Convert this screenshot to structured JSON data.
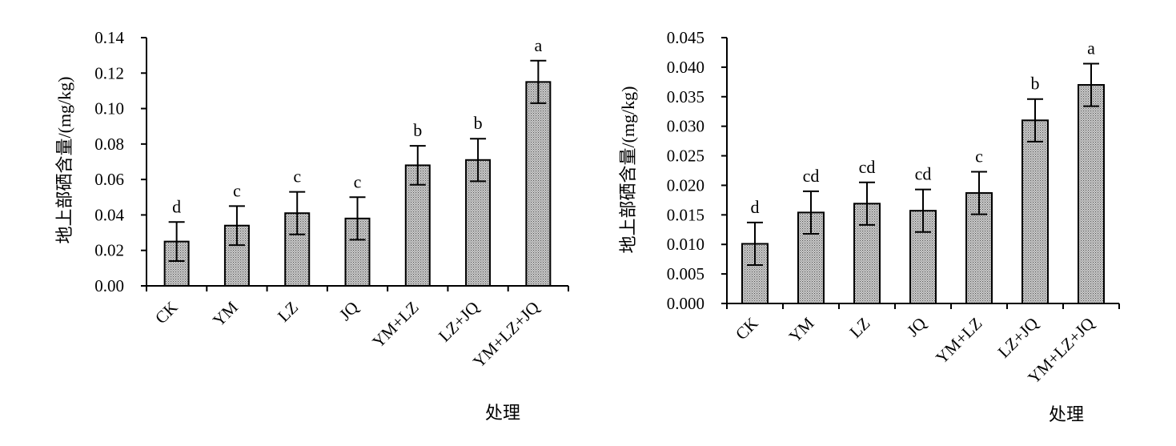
{
  "chart_data": [
    {
      "type": "bar",
      "ylabel": "地上部硒含量/(mg/kg)",
      "xlabel": "处理",
      "categories": [
        "CK",
        "YM",
        "LZ",
        "JQ",
        "YM+LZ",
        "LZ+JQ",
        "YM+LZ+JQ"
      ],
      "values": [
        0.025,
        0.034,
        0.041,
        0.038,
        0.068,
        0.071,
        0.115
      ],
      "errors": [
        0.011,
        0.011,
        0.012,
        0.012,
        0.011,
        0.012,
        0.012
      ],
      "letters": [
        "d",
        "c",
        "c",
        "c",
        "b",
        "b",
        "a"
      ],
      "ylim": [
        0,
        0.14
      ],
      "yticks": [
        "0.00",
        "0.02",
        "0.04",
        "0.06",
        "0.08",
        "0.10",
        "0.12",
        "0.14"
      ]
    },
    {
      "type": "bar",
      "ylabel": "地上部硒含量/(mg/kg)",
      "xlabel": "处理",
      "categories": [
        "CK",
        "YM",
        "LZ",
        "JQ",
        "YM+LZ",
        "LZ+JQ",
        "YM+LZ+JQ"
      ],
      "values": [
        0.0101,
        0.0154,
        0.0169,
        0.0157,
        0.0187,
        0.031,
        0.037
      ],
      "errors": [
        0.0036,
        0.0036,
        0.0036,
        0.0036,
        0.0036,
        0.0036,
        0.0036
      ],
      "letters": [
        "d",
        "cd",
        "cd",
        "cd",
        "c",
        "b",
        "a"
      ],
      "ylim": [
        0,
        0.045
      ],
      "yticks": [
        "0.000",
        "0.005",
        "0.010",
        "0.015",
        "0.020",
        "0.025",
        "0.030",
        "0.035",
        "0.040",
        "0.045"
      ]
    }
  ]
}
